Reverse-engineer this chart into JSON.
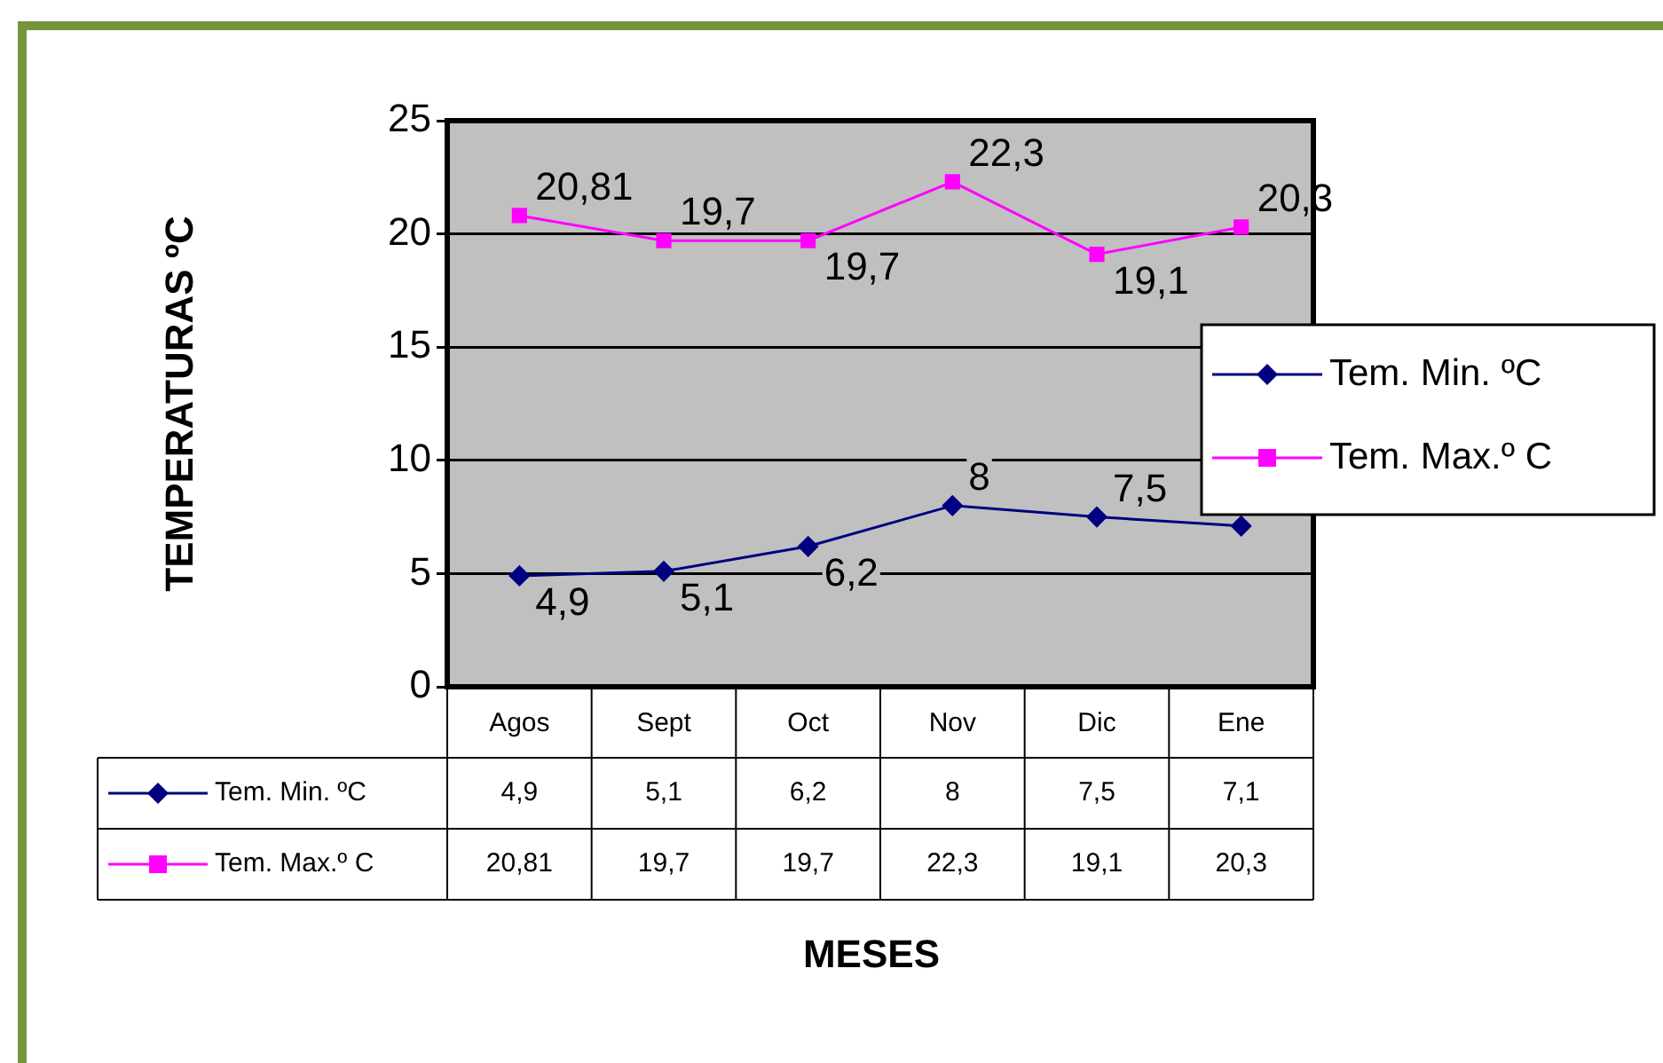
{
  "chart_data": {
    "type": "line",
    "xlabel": "MESES",
    "ylabel": "TEMPERATURAS ºC",
    "categories": [
      "Agos",
      "Sept",
      "Oct",
      "Nov",
      "Dic",
      "Ene"
    ],
    "series": [
      {
        "name": "Tem. Min. ºC",
        "color": "#000080",
        "marker": "diamond",
        "values": [
          4.9,
          5.1,
          6.2,
          8,
          7.5,
          7.1
        ],
        "value_labels": [
          "4,9",
          "5,1",
          "6,2",
          "8",
          "7,5",
          "7,1"
        ]
      },
      {
        "name": "Tem. Max.º C",
        "color": "#ff00ff",
        "marker": "square",
        "values": [
          20.81,
          19.7,
          19.7,
          22.3,
          19.1,
          20.3
        ],
        "value_labels": [
          "20,81",
          "19,7",
          "19,7",
          "22,3",
          "19,1",
          "20,3"
        ]
      }
    ],
    "ylim": [
      0,
      25
    ],
    "yticks": [
      0,
      5,
      10,
      15,
      20,
      25
    ],
    "grid": "y",
    "legend": "right"
  }
}
